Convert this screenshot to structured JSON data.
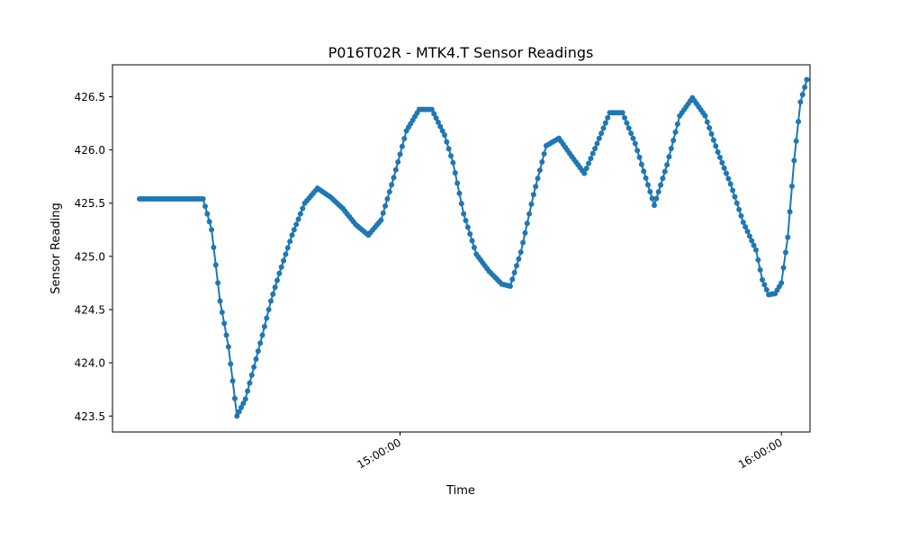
{
  "chart_data": {
    "type": "line",
    "title": "P016T02R - MTK4.T Sensor Readings",
    "xlabel": "Time",
    "ylabel": "Sensor Reading",
    "x_tick_labels": [
      "15:00:00",
      "16:00:00"
    ],
    "x_tick_values": [
      "15:00:00",
      "16:00:00"
    ],
    "y_tick_labels": [
      "423.5",
      "424.0",
      "424.5",
      "425.0",
      "425.5",
      "426.0",
      "426.5"
    ],
    "y_tick_values": [
      423.5,
      424.0,
      424.5,
      425.0,
      425.5,
      426.0,
      426.5
    ],
    "xlim": [
      "14:14:45",
      "16:04:30"
    ],
    "ylim": [
      423.35,
      426.8
    ],
    "grid": false,
    "legend": "none",
    "series_color": "#1f77b4",
    "marker": "circle",
    "series": [
      {
        "x": [
          "14:19:00",
          "14:29:00",
          "14:29:40",
          "14:30:20",
          "14:31:00",
          "14:31:40",
          "14:32:20",
          "14:33:00",
          "14:33:40",
          "14:34:20",
          "14:35:00",
          "14:35:40",
          "14:36:20",
          "14:37:00",
          "14:37:40",
          "14:38:20",
          "14:39:00",
          "14:39:40",
          "14:40:20",
          "14:41:00",
          "14:41:40",
          "14:42:20",
          "14:43:00",
          "14:45:00",
          "14:47:00",
          "14:49:00",
          "14:51:00",
          "14:53:00",
          "14:55:00",
          "14:57:00",
          "14:59:00",
          "15:01:00",
          "15:03:00",
          "15:05:00",
          "15:07:00",
          "15:08:20",
          "15:10:00",
          "15:12:00",
          "15:14:00",
          "15:16:00",
          "15:17:20",
          "15:19:00",
          "15:21:00",
          "15:23:00",
          "15:25:00",
          "15:27:00",
          "15:29:00",
          "15:31:00",
          "15:33:00",
          "15:35:00",
          "15:37:00",
          "15:38:20",
          "15:40:00",
          "15:42:00",
          "15:44:00",
          "15:46:00",
          "15:48:00",
          "15:50:00",
          "15:52:00",
          "15:54:00",
          "15:56:00",
          "15:57:00",
          "15:58:00",
          "15:59:00"
        ],
        "y": [
          425.54,
          425.54,
          425.4,
          425.25,
          424.92,
          424.58,
          424.37,
          424.15,
          423.83,
          423.5,
          423.58,
          423.66,
          423.81,
          423.96,
          424.11,
          424.26,
          424.42,
          424.58,
          424.71,
          424.84,
          424.96,
          425.08,
          425.2,
          425.5,
          425.64,
          425.56,
          425.45,
          425.3,
          425.2,
          425.34,
          425.74,
          426.18,
          426.38,
          426.38,
          426.14,
          425.88,
          425.4,
          425.02,
          424.86,
          424.74,
          424.72,
          425.04,
          425.58,
          426.04,
          426.11,
          425.94,
          425.78,
          426.06,
          426.35,
          426.35,
          426.06,
          425.8,
          425.48,
          425.86,
          426.32,
          426.49,
          426.32,
          425.98,
          425.68,
          425.32,
          425.06,
          424.78,
          424.64,
          424.65
        ],
        "x_extra": [
          "16:00:00",
          "16:01:00",
          "16:02:00",
          "16:03:00",
          "16:04:00",
          "16:04:30"
        ],
        "y_extra": [
          424.75,
          425.18,
          425.9,
          426.45,
          426.66,
          426.66
        ]
      }
    ]
  }
}
